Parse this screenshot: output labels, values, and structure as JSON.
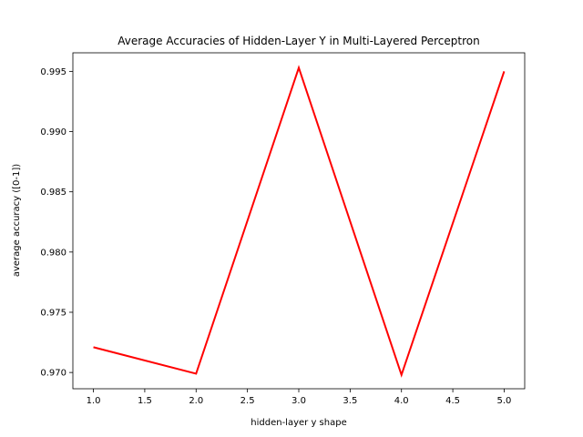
{
  "chart_data": {
    "type": "line",
    "title": "Average Accuracies of Hidden-Layer Y in Multi-Layered Perceptron",
    "xlabel": "hidden-layer y shape",
    "ylabel": "average accuracy ([0-1])",
    "x": [
      1.0,
      2.0,
      3.0,
      4.0,
      5.0
    ],
    "series": [
      {
        "values": [
          0.9721,
          0.9699,
          0.9953,
          0.9698,
          0.995
        ],
        "color": "#ff0000"
      }
    ],
    "xlim": [
      0.8,
      5.2
    ],
    "ylim": [
      0.96865,
      0.99654
    ],
    "xticks": [
      "1.0",
      "1.5",
      "2.0",
      "2.5",
      "3.0",
      "3.5",
      "4.0",
      "4.5",
      "5.0"
    ],
    "yticks": [
      "0.970",
      "0.975",
      "0.980",
      "0.985",
      "0.990",
      "0.995"
    ],
    "grid": false,
    "legend": "none"
  }
}
